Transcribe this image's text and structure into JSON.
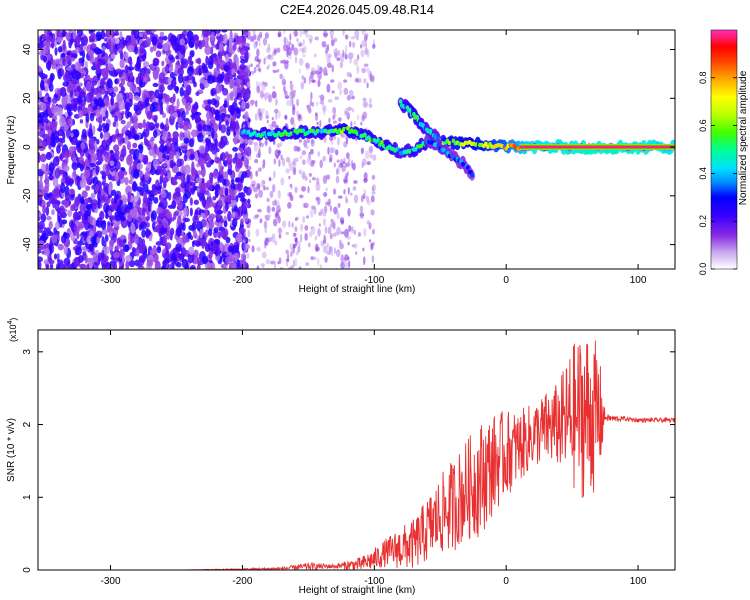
{
  "title": "C2E4.2026.045.09.48.R14",
  "colorbar": {
    "label": "Normalized spectral amplitude",
    "ticks": [
      "0.0",
      "0.2",
      "0.4",
      "0.6",
      "0.8"
    ],
    "tick_values": [
      0.0,
      0.2,
      0.4,
      0.6,
      0.8
    ],
    "range": [
      0,
      1
    ],
    "colors": [
      "#ffffff",
      "#c8a8f0",
      "#8a2be2",
      "#3a00ff",
      "#0000ff",
      "#0088ff",
      "#00e0ff",
      "#00ff90",
      "#40ff00",
      "#c0ff00",
      "#ffff00",
      "#ffa000",
      "#ff4000",
      "#ff0000",
      "#ff2080",
      "#ff30c0"
    ]
  },
  "chart_data": [
    {
      "type": "heatmap",
      "xlabel": "Height of straight line (km)",
      "ylabel": "Frequency (Hz)",
      "xlim": [
        -355,
        128
      ],
      "ylim": [
        -50,
        48
      ],
      "xticks": [
        -300,
        -200,
        -100,
        0,
        100
      ],
      "yticks": [
        -40,
        -20,
        0,
        20,
        40
      ],
      "tracks": [
        {
          "description_free": true,
          "x": [
            -200,
            -180,
            -160,
            -140,
            -120,
            -110,
            -100,
            -90,
            -80,
            -70,
            -60,
            -40,
            -20,
            0,
            20,
            60,
            100,
            128
          ],
          "y": [
            6,
            5,
            6,
            6,
            7,
            5,
            3,
            0,
            -2,
            -1,
            2,
            2,
            1,
            0,
            0,
            0,
            0,
            0
          ],
          "amp": [
            0.4,
            0.45,
            0.5,
            0.45,
            0.55,
            0.5,
            0.45,
            0.5,
            0.4,
            0.45,
            0.5,
            0.55,
            0.6,
            0.7,
            0.9,
            0.95,
            0.95,
            0.9
          ]
        },
        {
          "x": [
            -80,
            -75,
            -70,
            -65,
            -60,
            -55,
            -50
          ],
          "y": [
            18,
            16,
            13,
            10,
            7,
            5,
            3
          ],
          "amp": [
            0.4,
            0.45,
            0.5,
            0.45,
            0.4,
            0.4,
            0.35
          ]
        },
        {
          "x": [
            -60,
            -50,
            -40,
            -30,
            -25
          ],
          "y": [
            3,
            0,
            -4,
            -8,
            -12
          ],
          "amp": [
            0.3,
            0.35,
            0.3,
            0.3,
            0.25
          ]
        }
      ]
    },
    {
      "type": "line",
      "xlabel": "Height of straight line (km)",
      "ylabel": "SNR (10 * v/v)",
      "y_multiplier": "(x10^4)",
      "xlim": [
        -355,
        128
      ],
      "ylim": [
        0,
        3.3
      ],
      "xticks": [
        -300,
        -200,
        -100,
        0,
        100
      ],
      "yticks": [
        0,
        1,
        2,
        3
      ],
      "series": [
        {
          "color": "#e83030",
          "x": [
            -355,
            -300,
            -250,
            -200,
            -170,
            -150,
            -130,
            -110,
            -100,
            -90,
            -80,
            -70,
            -60,
            -50,
            -40,
            -30,
            -20,
            -10,
            0,
            10,
            20,
            30,
            40,
            50,
            60,
            70,
            75,
            80,
            90,
            100,
            110,
            128
          ],
          "y": [
            0.0,
            0.0,
            0.0,
            0.01,
            0.02,
            0.05,
            0.05,
            0.08,
            0.15,
            0.25,
            0.3,
            0.35,
            0.55,
            0.75,
            0.9,
            1.1,
            1.25,
            1.45,
            1.6,
            1.7,
            1.85,
            1.95,
            2.0,
            2.1,
            2.15,
            2.1,
            2.1,
            2.08,
            2.08,
            2.06,
            2.06,
            2.06
          ],
          "noise": [
            0.0,
            0.0,
            0.0,
            0.01,
            0.02,
            0.05,
            0.03,
            0.1,
            0.15,
            0.2,
            0.3,
            0.35,
            0.45,
            0.55,
            0.65,
            0.7,
            0.8,
            0.7,
            0.6,
            0.5,
            0.45,
            0.5,
            0.6,
            1.0,
            1.2,
            1.0,
            0.05,
            0.05,
            0.03,
            0.03,
            0.03,
            0.03
          ]
        }
      ]
    }
  ]
}
